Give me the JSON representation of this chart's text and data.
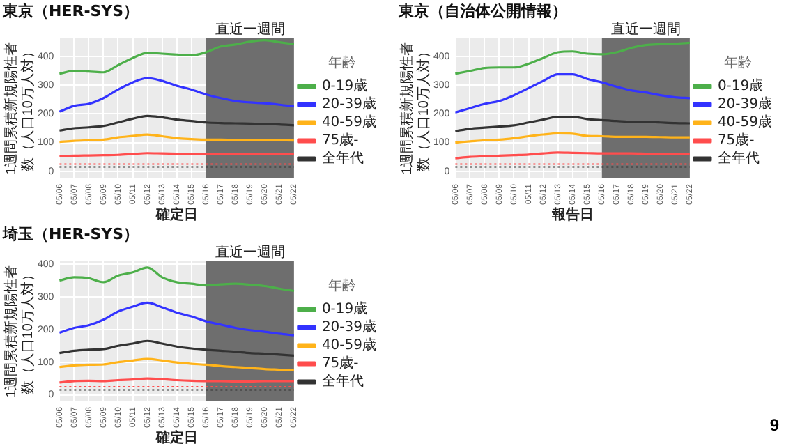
{
  "chart_data": [
    {
      "type": "line",
      "title": "東京（HER-SYS）",
      "xlabel": "確定日",
      "ylabel": "1週間累積新規陽性者数（人口10万人対）",
      "legend_title": "年齢",
      "legend": "right",
      "grid": true,
      "marker": "none",
      "line_style": "solid",
      "categories": [
        "05/06",
        "05/07",
        "05/08",
        "05/09",
        "05/10",
        "05/11",
        "05/12",
        "05/13",
        "05/14",
        "05/15",
        "05/16",
        "05/17",
        "05/18",
        "05/19",
        "05/20",
        "05/21",
        "05/22"
      ],
      "ylim": [
        -25,
        465
      ],
      "yticks": [
        0,
        100,
        200,
        300,
        400
      ],
      "series": [
        {
          "name": "0-19歳",
          "color": "#4daf4a",
          "values": [
            340,
            350,
            348,
            345,
            370,
            395,
            413,
            410,
            407,
            404,
            415,
            435,
            442,
            452,
            457,
            450,
            443
          ]
        },
        {
          "name": "20-39歳",
          "color": "#3333ff",
          "values": [
            208,
            228,
            235,
            255,
            285,
            310,
            325,
            315,
            298,
            285,
            268,
            255,
            245,
            240,
            237,
            232,
            226
          ]
        },
        {
          "name": "40-59歳",
          "color": "#ffb31a",
          "values": [
            102,
            106,
            108,
            110,
            118,
            123,
            128,
            122,
            115,
            112,
            110,
            110,
            109,
            109,
            109,
            108,
            107
          ]
        },
        {
          "name": "75歳-",
          "color": "#ff4d4d",
          "values": [
            52,
            54,
            55,
            56,
            57,
            60,
            63,
            62,
            61,
            60,
            60,
            60,
            59,
            59,
            60,
            59,
            59
          ]
        },
        {
          "name": "全年代",
          "color": "#333333",
          "values": [
            142,
            150,
            153,
            158,
            170,
            183,
            193,
            188,
            180,
            175,
            170,
            168,
            167,
            166,
            165,
            163,
            160
          ]
        }
      ],
      "ref_lines": [
        {
          "axis": "y",
          "value": 25,
          "color": "#ff4d4d",
          "line_style": "dotted"
        },
        {
          "axis": "y",
          "value": 15,
          "color": "#333333",
          "line_style": "dotted"
        }
      ],
      "bands": [
        {
          "axis": "x",
          "from": "05/16",
          "to": "05/22",
          "label": "直近一週間",
          "color": "#6e6e6e"
        }
      ]
    },
    {
      "type": "line",
      "title": "東京（自治体公開情報）",
      "xlabel": "報告日",
      "ylabel": "1週間累積新規陽性者数（人口10万人対）",
      "legend_title": "年齢",
      "legend": "right",
      "grid": true,
      "marker": "none",
      "line_style": "solid",
      "categories": [
        "05/06",
        "05/07",
        "05/08",
        "05/09",
        "05/10",
        "05/11",
        "05/12",
        "05/13",
        "05/14",
        "05/15",
        "05/16",
        "05/17",
        "05/18",
        "05/19",
        "05/20",
        "05/21",
        "05/22"
      ],
      "ylim": [
        -25,
        465
      ],
      "yticks": [
        0,
        100,
        200,
        300,
        400
      ],
      "series": [
        {
          "name": "0-19歳",
          "color": "#4daf4a",
          "values": [
            340,
            350,
            360,
            362,
            362,
            375,
            395,
            415,
            418,
            410,
            408,
            415,
            430,
            440,
            443,
            445,
            448
          ]
        },
        {
          "name": "20-39歳",
          "color": "#3333ff",
          "values": [
            205,
            220,
            235,
            245,
            265,
            290,
            315,
            338,
            338,
            322,
            310,
            295,
            282,
            275,
            265,
            258,
            255
          ]
        },
        {
          "name": "40-59歳",
          "color": "#ffb31a",
          "values": [
            100,
            104,
            108,
            110,
            115,
            122,
            128,
            132,
            131,
            123,
            122,
            120,
            120,
            120,
            119,
            118,
            118
          ]
        },
        {
          "name": "75歳-",
          "color": "#ff4d4d",
          "values": [
            45,
            50,
            52,
            54,
            56,
            58,
            62,
            65,
            64,
            63,
            62,
            62,
            62,
            61,
            60,
            61,
            61
          ]
        },
        {
          "name": "全年代",
          "color": "#333333",
          "values": [
            140,
            148,
            152,
            156,
            160,
            170,
            180,
            190,
            190,
            182,
            178,
            175,
            172,
            172,
            170,
            168,
            167
          ]
        }
      ],
      "ref_lines": [
        {
          "axis": "y",
          "value": 25,
          "color": "#ff4d4d",
          "line_style": "dotted"
        },
        {
          "axis": "y",
          "value": 15,
          "color": "#333333",
          "line_style": "dotted"
        }
      ],
      "bands": [
        {
          "axis": "x",
          "from": "05/16",
          "to": "05/22",
          "label": "直近一週間",
          "color": "#6e6e6e"
        }
      ]
    },
    {
      "type": "line",
      "title": "埼玉（HER-SYS）",
      "xlabel": "確定日",
      "ylabel": "1週間累積新規陽性者数（人口10万人対）",
      "legend_title": "年齢",
      "legend": "right",
      "grid": true,
      "marker": "none",
      "line_style": "solid",
      "categories": [
        "05/06",
        "05/07",
        "05/08",
        "05/09",
        "05/10",
        "05/11",
        "05/12",
        "05/13",
        "05/14",
        "05/15",
        "05/16",
        "05/17",
        "05/18",
        "05/19",
        "05/20",
        "05/21",
        "05/22"
      ],
      "ylim": [
        -20,
        410
      ],
      "yticks": [
        0,
        100,
        200,
        300,
        400
      ],
      "series": [
        {
          "name": "0-19歳",
          "color": "#4daf4a",
          "values": [
            350,
            360,
            357,
            345,
            365,
            375,
            390,
            360,
            345,
            340,
            335,
            338,
            340,
            337,
            333,
            325,
            318
          ]
        },
        {
          "name": "20-39歳",
          "color": "#3333ff",
          "values": [
            190,
            205,
            213,
            230,
            255,
            270,
            282,
            268,
            252,
            240,
            225,
            215,
            205,
            198,
            193,
            187,
            182
          ]
        },
        {
          "name": "40-59歳",
          "color": "#ffb31a",
          "values": [
            85,
            90,
            92,
            93,
            100,
            105,
            110,
            105,
            99,
            95,
            92,
            88,
            85,
            82,
            79,
            77,
            75
          ]
        },
        {
          "name": "75歳-",
          "color": "#ff4d4d",
          "values": [
            38,
            42,
            43,
            42,
            45,
            47,
            50,
            48,
            45,
            43,
            42,
            42,
            41,
            41,
            42,
            42,
            42
          ]
        },
        {
          "name": "全年代",
          "color": "#333333",
          "values": [
            128,
            135,
            138,
            140,
            150,
            157,
            165,
            157,
            148,
            142,
            138,
            135,
            132,
            128,
            126,
            123,
            120
          ]
        }
      ],
      "ref_lines": [
        {
          "axis": "y",
          "value": 25,
          "color": "#ff4d4d",
          "line_style": "dotted"
        },
        {
          "axis": "y",
          "value": 15,
          "color": "#333333",
          "line_style": "dotted"
        }
      ],
      "bands": [
        {
          "axis": "x",
          "from": "05/16",
          "to": "05/22",
          "label": "直近一週間",
          "color": "#6e6e6e"
        }
      ],
      "annotations": [
        "9"
      ]
    }
  ]
}
